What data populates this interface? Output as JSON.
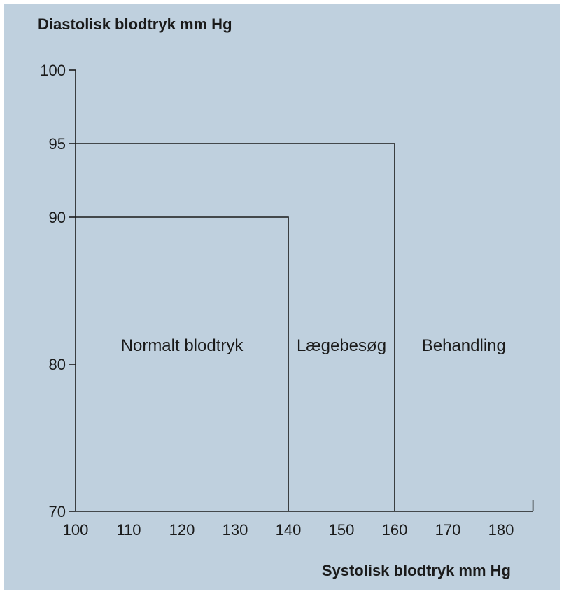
{
  "chart_data": {
    "type": "area",
    "ylabel": "Diastolisk blodtryk mm Hg",
    "xlabel": "Systolisk blodtryk mm Hg",
    "xlim": [
      100,
      186
    ],
    "ylim": [
      70,
      100
    ],
    "x_ticks": [
      100,
      110,
      120,
      130,
      140,
      150,
      160,
      170,
      180
    ],
    "y_ticks": [
      70,
      80,
      90,
      95,
      100
    ],
    "zones": [
      {
        "label": "Normalt blodtryk",
        "x_max": 140,
        "y_max": 90
      },
      {
        "label": "Lægebesøg",
        "x_max": 160,
        "y_max": 95
      },
      {
        "label": "Behandling",
        "x_max": null,
        "y_max": null
      }
    ],
    "grid": false,
    "colors": {
      "background": "#bfd0de",
      "ink": "#1a1a1a"
    }
  }
}
